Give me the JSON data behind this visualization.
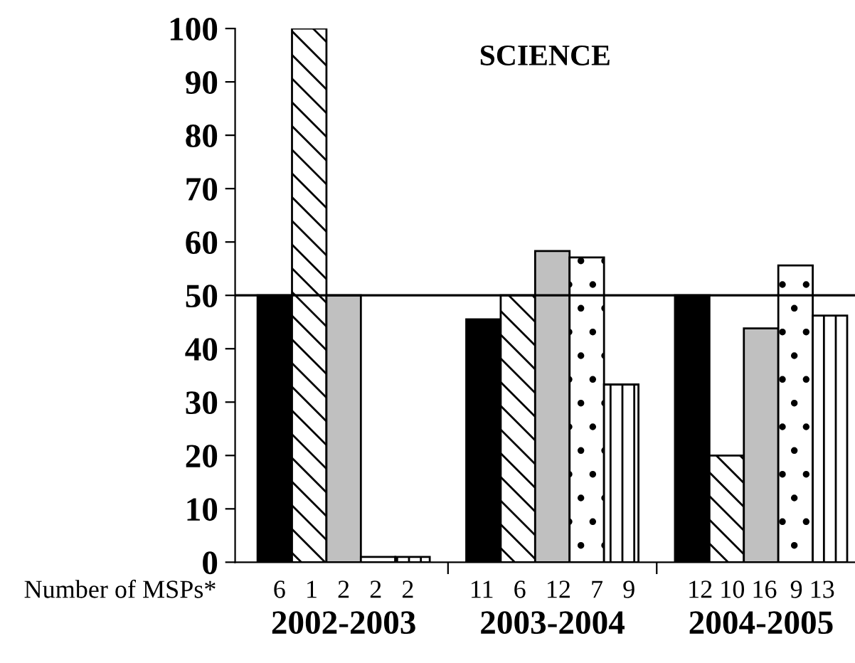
{
  "chart_data": {
    "type": "bar",
    "title": "SCIENCE",
    "categories": [
      "2002-2003",
      "2003-2004",
      "2004-2005"
    ],
    "series": [
      {
        "color": "#000000",
        "values": [
          50,
          45.5,
          50
        ]
      },
      {
        "color": "#000000",
        "values": [
          100,
          50,
          20
        ]
      },
      {
        "color": "#c0c0c0",
        "values": [
          50,
          58.3,
          43.8
        ]
      },
      {
        "color": "#000000",
        "values": [
          1,
          57.1,
          55.6
        ]
      },
      {
        "color": "#000000",
        "values": [
          1,
          33.3,
          46.2
        ]
      }
    ],
    "ylim": [
      0,
      100
    ],
    "yticks": [
      0,
      10,
      20,
      30,
      40,
      50,
      60,
      70,
      80,
      90,
      100
    ],
    "ref_lines": [
      {
        "axis": "y",
        "value": 50,
        "color": "#000000"
      }
    ],
    "annotations": [
      "Number of MSPs*",
      "6   1   2   2   2",
      "11   6   12   7   9",
      "12 10 16  9 13"
    ],
    "grid": false,
    "legend": false
  }
}
